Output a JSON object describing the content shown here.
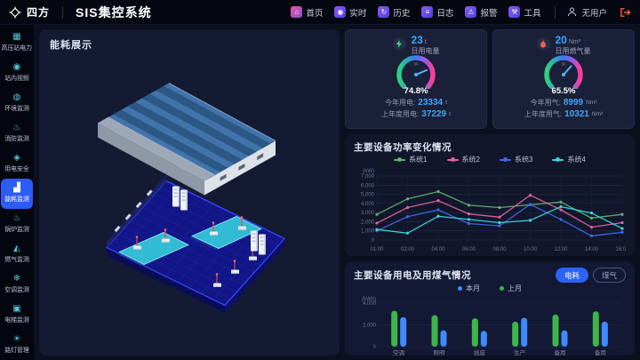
{
  "header": {
    "logo_text": "四方",
    "app_title": "SIS集控系统",
    "nav_items": [
      {
        "label": "首页",
        "icon": "home-icon",
        "glyph": "⌂"
      },
      {
        "label": "实时",
        "icon": "realtime-icon",
        "glyph": "◉"
      },
      {
        "label": "历史",
        "icon": "history-icon",
        "glyph": "↻"
      },
      {
        "label": "日志",
        "icon": "log-icon",
        "glyph": "≡"
      },
      {
        "label": "报警",
        "icon": "alarm-icon",
        "glyph": "⚠"
      },
      {
        "label": "工具",
        "icon": "tools-icon",
        "glyph": "⚒"
      }
    ],
    "user_label": "无用户",
    "logout_color": "#ff5b38"
  },
  "sidebar": {
    "items": [
      {
        "name": "sidebar-item-hv-power",
        "label": "高压站电力",
        "icon": "power-station-icon",
        "glyph": "▦",
        "active": false
      },
      {
        "name": "sidebar-item-video",
        "label": "站内视频",
        "icon": "camera-icon",
        "glyph": "◉",
        "active": false
      },
      {
        "name": "sidebar-item-environment",
        "label": "环境监测",
        "icon": "globe-icon",
        "glyph": "◍",
        "active": false
      },
      {
        "name": "sidebar-item-fire",
        "label": "消防监测",
        "icon": "fire-extinguisher-icon",
        "glyph": "♨",
        "active": false
      },
      {
        "name": "sidebar-item-electric-safety",
        "label": "用电安全",
        "icon": "shield-icon",
        "glyph": "◈",
        "active": false
      },
      {
        "name": "sidebar-item-energy",
        "label": "能耗监测",
        "icon": "energy-chart-icon",
        "glyph": "▟",
        "active": true
      },
      {
        "name": "sidebar-item-boiler",
        "label": "锅炉监测",
        "icon": "boiler-icon",
        "glyph": "♨",
        "active": false
      },
      {
        "name": "sidebar-item-gas",
        "label": "燃气监测",
        "icon": "gas-icon",
        "glyph": "◭",
        "active": false
      },
      {
        "name": "sidebar-item-hvac",
        "label": "空调监测",
        "icon": "snowflake-icon",
        "glyph": "❄",
        "active": false
      },
      {
        "name": "sidebar-item-elevator",
        "label": "电梯监测",
        "icon": "elevator-icon",
        "glyph": "▣",
        "active": false
      },
      {
        "name": "sidebar-item-streetlight",
        "label": "路灯管理",
        "icon": "streetlight-icon",
        "glyph": "☀",
        "active": false
      }
    ]
  },
  "left_panel": {
    "title": "能耗展示"
  },
  "gauges": [
    {
      "icon": "bolt-icon",
      "icon_color": "#35e07a",
      "daily_value": "23",
      "daily_unit": "t",
      "daily_label": "日用电量",
      "percent": 74.8,
      "percent_label": "74.8%",
      "scale": [
        "0",
        "50",
        "100"
      ],
      "stats": [
        {
          "label": "今年用电:",
          "value": "23334",
          "unit": "t"
        },
        {
          "label": "上年度用电:",
          "value": "37229",
          "unit": "t"
        }
      ]
    },
    {
      "icon": "flame-icon",
      "icon_color": "#ff5b4a",
      "daily_value": "20",
      "daily_unit": "Nm³",
      "daily_label": "日用燃气量",
      "percent": 65.5,
      "percent_label": "65.5%",
      "scale": [
        "0",
        "50",
        "100"
      ],
      "stats": [
        {
          "label": "今年用气:",
          "value": "8999",
          "unit": "Nm³"
        },
        {
          "label": "上年度用气:",
          "value": "10321",
          "unit": "Nm³"
        }
      ]
    }
  ],
  "power_section": {
    "title": "主要设备功率变化情况"
  },
  "energy_section": {
    "title": "主要设备用电及用煤气情况",
    "tabs": [
      {
        "label": "电耗",
        "active": true
      },
      {
        "label": "煤气",
        "active": false
      }
    ]
  },
  "chart_data": [
    {
      "type": "line",
      "title": "主要设备功率变化情况",
      "xlabel": "",
      "ylabel": "(kW)",
      "ylim": [
        0,
        7000
      ],
      "ytick_step": 1000,
      "grid": true,
      "legend_position": "top",
      "x": [
        "01:00",
        "02:00",
        "04:00",
        "06:00",
        "08:00",
        "10:00",
        "12:00",
        "14:00",
        "16:00"
      ],
      "series": [
        {
          "name": "系统1",
          "color": "#5fb26a",
          "values": [
            2800,
            4500,
            5300,
            3800,
            3550,
            3850,
            4150,
            2400,
            2800
          ]
        },
        {
          "name": "系统2",
          "color": "#e0619f",
          "values": [
            1850,
            3550,
            4300,
            2850,
            2500,
            4900,
            3300,
            1400,
            1900
          ]
        },
        {
          "name": "系统3",
          "color": "#3f68e8",
          "values": [
            1000,
            2550,
            3300,
            1800,
            1550,
            3900,
            2250,
            450,
            850
          ]
        },
        {
          "name": "系统4",
          "color": "#3fd4dc",
          "values": [
            1150,
            750,
            2600,
            2250,
            1900,
            2150,
            3650,
            2950,
            1250
          ]
        }
      ]
    },
    {
      "type": "bar",
      "title": "主要设备用电及用煤气情况",
      "xlabel": "",
      "ylabel": "(kWh)",
      "ylim": [
        0,
        4000
      ],
      "ytick_step": 2000,
      "grid": true,
      "legend_position": "top",
      "categories": [
        "空调",
        "照明",
        "插座",
        "生产",
        "备用",
        "备用"
      ],
      "series": [
        {
          "name": "本月",
          "color": "#3d8bfd",
          "values": [
            2700,
            1500,
            1450,
            2650,
            1500,
            2300
          ]
        },
        {
          "name": "上月",
          "color": "#3cb54a",
          "values": [
            3300,
            2900,
            2600,
            2300,
            2950,
            3250
          ]
        }
      ]
    }
  ]
}
